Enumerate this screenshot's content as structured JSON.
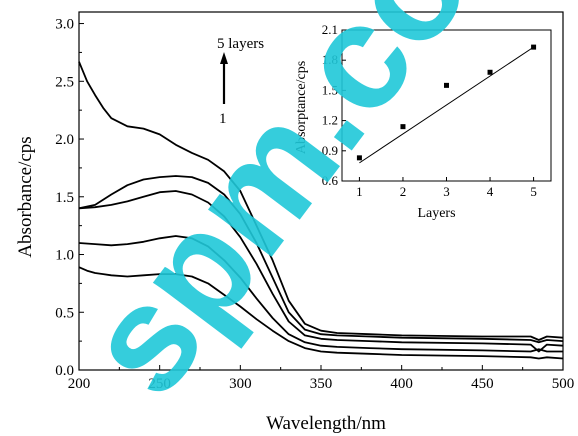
{
  "watermark": "spm.com.cn",
  "chart_data": [
    {
      "type": "line",
      "xlabel": "Wavelength/nm",
      "ylabel": "Absorbance/cps",
      "xlim": [
        200,
        500
      ],
      "ylim": [
        0.0,
        3.1
      ],
      "xticks": [
        "200",
        "250",
        "300",
        "350",
        "400",
        "450",
        "500"
      ],
      "yticks": [
        "0.0",
        "0.5",
        "1.0",
        "1.5",
        "2.0",
        "2.5",
        "3.0"
      ],
      "annotation": {
        "top": "5 layers",
        "bottom": "1"
      },
      "series": [
        {
          "x": [
            200,
            205,
            210,
            215,
            220,
            230,
            240,
            250,
            260,
            270,
            280,
            290,
            300,
            310,
            320,
            330,
            340,
            350,
            360,
            380,
            400,
            450,
            480,
            485,
            490,
            500
          ],
          "y": [
            0.89,
            0.86,
            0.84,
            0.83,
            0.82,
            0.81,
            0.82,
            0.83,
            0.83,
            0.81,
            0.75,
            0.65,
            0.55,
            0.44,
            0.34,
            0.25,
            0.19,
            0.16,
            0.15,
            0.14,
            0.13,
            0.12,
            0.11,
            0.1,
            0.11,
            0.1
          ]
        },
        {
          "x": [
            200,
            210,
            220,
            230,
            240,
            250,
            260,
            270,
            280,
            290,
            300,
            310,
            320,
            330,
            340,
            350,
            360,
            380,
            400,
            450,
            480,
            485,
            490,
            500
          ],
          "y": [
            1.1,
            1.09,
            1.08,
            1.09,
            1.11,
            1.14,
            1.16,
            1.14,
            1.07,
            0.95,
            0.8,
            0.62,
            0.45,
            0.31,
            0.24,
            0.21,
            0.2,
            0.19,
            0.18,
            0.17,
            0.16,
            0.18,
            0.16,
            0.16
          ]
        },
        {
          "x": [
            200,
            210,
            220,
            230,
            240,
            250,
            260,
            270,
            280,
            290,
            300,
            310,
            320,
            330,
            340,
            350,
            360,
            380,
            400,
            450,
            480,
            485,
            490,
            500
          ],
          "y": [
            1.4,
            1.41,
            1.43,
            1.46,
            1.5,
            1.54,
            1.55,
            1.52,
            1.45,
            1.33,
            1.15,
            0.92,
            0.66,
            0.42,
            0.3,
            0.27,
            0.26,
            0.25,
            0.24,
            0.23,
            0.22,
            0.16,
            0.22,
            0.21
          ]
        },
        {
          "x": [
            200,
            210,
            220,
            230,
            240,
            250,
            260,
            270,
            280,
            290,
            300,
            310,
            320,
            330,
            340,
            350,
            360,
            380,
            400,
            450,
            480,
            485,
            490,
            500
          ],
          "y": [
            1.4,
            1.43,
            1.52,
            1.6,
            1.65,
            1.67,
            1.68,
            1.67,
            1.62,
            1.52,
            1.35,
            1.1,
            0.8,
            0.5,
            0.35,
            0.31,
            0.3,
            0.29,
            0.28,
            0.27,
            0.26,
            0.24,
            0.26,
            0.25
          ]
        },
        {
          "x": [
            200,
            205,
            210,
            215,
            220,
            230,
            240,
            250,
            260,
            270,
            280,
            290,
            300,
            310,
            320,
            330,
            340,
            350,
            360,
            380,
            400,
            450,
            480,
            485,
            490,
            500
          ],
          "y": [
            2.67,
            2.5,
            2.38,
            2.27,
            2.18,
            2.11,
            2.09,
            2.04,
            1.95,
            1.88,
            1.82,
            1.72,
            1.55,
            1.25,
            0.95,
            0.6,
            0.4,
            0.34,
            0.32,
            0.31,
            0.3,
            0.29,
            0.29,
            0.26,
            0.29,
            0.28
          ]
        }
      ]
    },
    {
      "type": "scatter",
      "xlabel": "Layers",
      "ylabel": "Absorptance/cps",
      "xlim": [
        0.6,
        5.4
      ],
      "ylim": [
        0.6,
        2.1
      ],
      "xticks": [
        "1",
        "2",
        "3",
        "4",
        "5"
      ],
      "yticks": [
        "0.6",
        "0.9",
        "1.2",
        "1.5",
        "1.8",
        "2.1"
      ],
      "points": {
        "x": [
          1,
          2,
          3,
          4,
          5
        ],
        "y": [
          0.83,
          1.14,
          1.55,
          1.68,
          1.93
        ]
      },
      "fit_line": {
        "x": [
          1,
          5
        ],
        "y": [
          0.78,
          1.93
        ]
      }
    }
  ]
}
